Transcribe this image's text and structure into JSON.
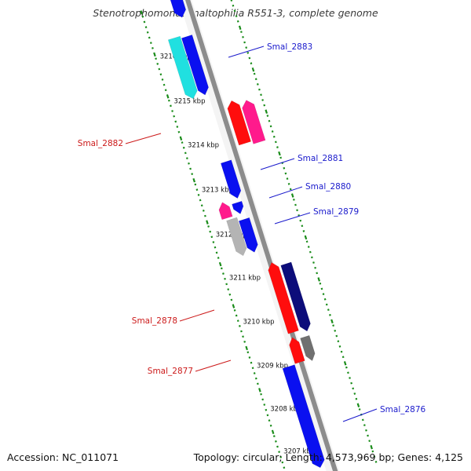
{
  "title": "Stenotrophomonas maltophilia R551-3, complete genome",
  "footer": {
    "accession": "Accession: NC_011071",
    "info": "Topology: circular; Length: 4,573,969 bp; Genes: 4,125"
  },
  "colors": {
    "backbone": "#8c8c8c",
    "dotted_ring": "#1a8c1a",
    "forward_label": "#1a1acc",
    "reverse_label": "#cc1a1a",
    "gene_blue": "#0a10f0",
    "gene_cyan": "#20e0e0",
    "gene_red": "#ff0d0d",
    "gene_pink": "#ff1a8c",
    "gene_navy": "#0c0c7a",
    "gene_gray": "#b4b4b4",
    "gene_darkgray": "#707070"
  },
  "ticks": [
    "3216 kbp",
    "3215 kbp",
    "3214 kbp",
    "3213 kbp",
    "3212 kbp",
    "3211 kbp",
    "3210 kbp",
    "3209 kbp",
    "3208 kbp",
    "3207 kbp"
  ],
  "genes": [
    {
      "label": "Smal_2883",
      "strand": "forward"
    },
    {
      "label": "Smal_2882",
      "strand": "reverse"
    },
    {
      "label": "Smal_2881",
      "strand": "forward"
    },
    {
      "label": "Smal_2880",
      "strand": "forward"
    },
    {
      "label": "Smal_2879",
      "strand": "forward"
    },
    {
      "label": "Smal_2878",
      "strand": "reverse"
    },
    {
      "label": "Smal_2877",
      "strand": "reverse"
    },
    {
      "label": "Smal_2876",
      "strand": "forward"
    }
  ]
}
